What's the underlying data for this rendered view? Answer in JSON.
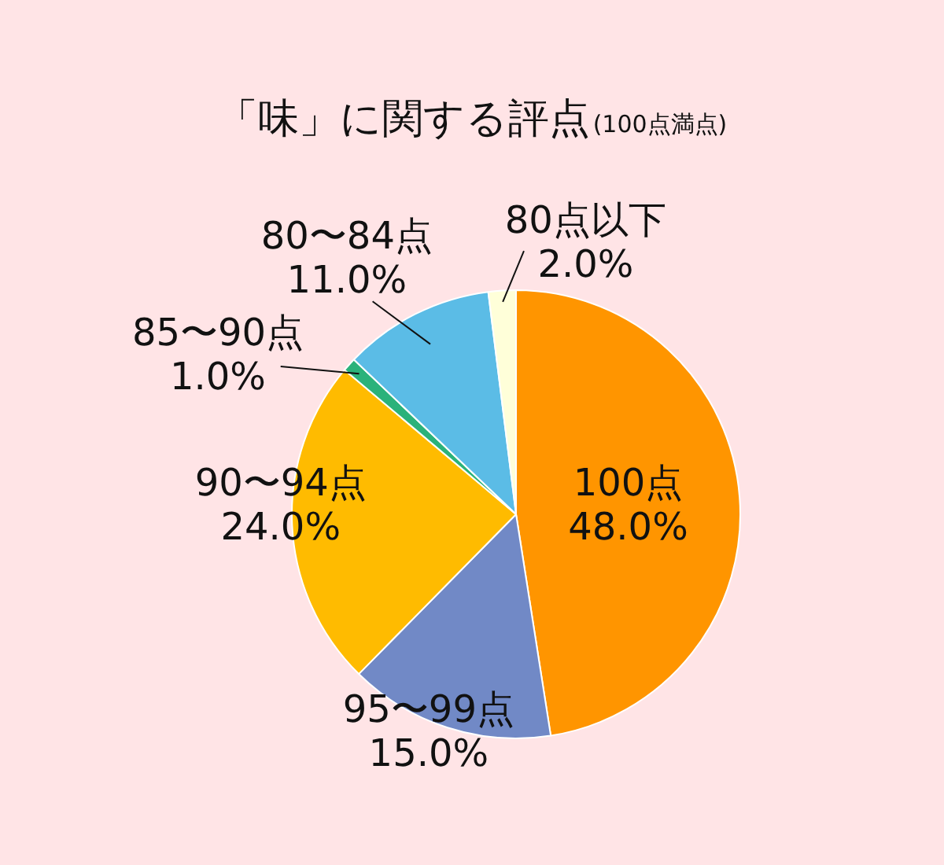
{
  "chart_data": {
    "type": "pie",
    "title": "「味」に関する評点",
    "subtitle": "(100点満点)",
    "categories": [
      "100点",
      "95〜99点",
      "90〜94点",
      "85〜90点",
      "80〜84点",
      "80点以下"
    ],
    "values": [
      48.0,
      15.0,
      24.0,
      1.0,
      11.0,
      2.0
    ],
    "colors": [
      "#ff9500",
      "#7189c6",
      "#ffbb00",
      "#2bb27a",
      "#5bbce6",
      "#ffffd9"
    ],
    "value_labels": [
      "48.0%",
      "15.0%",
      "24.0%",
      "1.0%",
      "11.0%",
      "2.0%"
    ]
  }
}
